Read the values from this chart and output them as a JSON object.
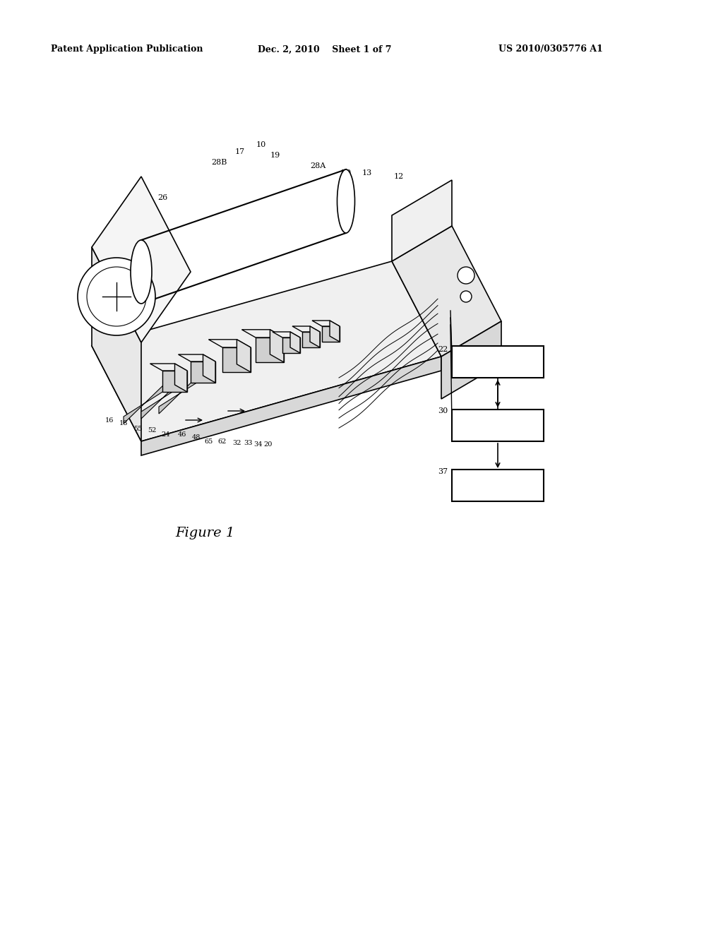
{
  "background_color": "#ffffff",
  "header_left": "Patent Application Publication",
  "header_center": "Dec. 2, 2010    Sheet 1 of 7",
  "header_right": "US 2010/0305776 A1",
  "figure_label": "Figure 1",
  "title_fontsize": 10,
  "header_fontsize": 9
}
